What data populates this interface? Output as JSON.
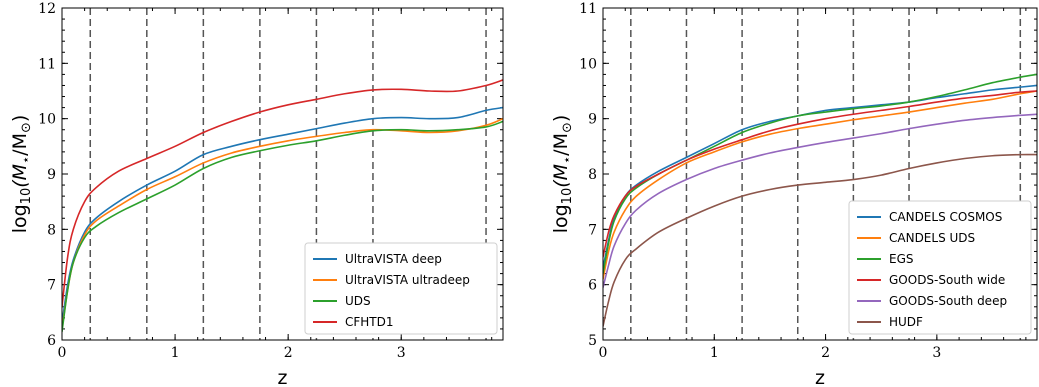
{
  "chart_data": [
    {
      "type": "line",
      "xlabel": "z",
      "ylabel_prefix": "log",
      "ylabel_sub": "10",
      "ylabel_main": "(M",
      "ylabel_star": "⋆",
      "ylabel_tail": "/M",
      "ylabel_sun": "⊙",
      "ylabel_end": ")",
      "xlim": [
        0,
        3.9
      ],
      "ylim": [
        6,
        12
      ],
      "xticks": [
        0,
        1,
        2,
        3
      ],
      "yticks": [
        6,
        7,
        8,
        9,
        10,
        11,
        12
      ],
      "vlines": [
        0.25,
        0.75,
        1.25,
        1.75,
        2.25,
        2.75,
        3.75
      ],
      "legend_position": "lower-right",
      "series": [
        {
          "name": "UltraVISTA deep",
          "color": "#1f77b4",
          "x": [
            0,
            0.05,
            0.1,
            0.2,
            0.3,
            0.5,
            0.75,
            1.0,
            1.25,
            1.5,
            1.75,
            2.0,
            2.25,
            2.5,
            2.75,
            3.0,
            3.25,
            3.5,
            3.75,
            3.9
          ],
          "y": [
            6.3,
            7.0,
            7.45,
            7.95,
            8.2,
            8.5,
            8.8,
            9.05,
            9.35,
            9.5,
            9.62,
            9.72,
            9.82,
            9.92,
            10.0,
            10.02,
            10.0,
            10.02,
            10.15,
            10.2
          ]
        },
        {
          "name": "UltraVISTA ultradeep",
          "color": "#ff7f0e",
          "x": [
            0,
            0.05,
            0.1,
            0.2,
            0.3,
            0.5,
            0.75,
            1.0,
            1.25,
            1.5,
            1.75,
            2.0,
            2.25,
            2.5,
            2.75,
            3.0,
            3.25,
            3.5,
            3.75,
            3.9
          ],
          "y": [
            6.2,
            6.9,
            7.4,
            7.9,
            8.15,
            8.42,
            8.72,
            8.95,
            9.2,
            9.38,
            9.5,
            9.6,
            9.68,
            9.75,
            9.8,
            9.78,
            9.75,
            9.78,
            9.88,
            10.0
          ]
        },
        {
          "name": "UDS",
          "color": "#2ca02c",
          "x": [
            0,
            0.05,
            0.1,
            0.2,
            0.3,
            0.5,
            0.75,
            1.0,
            1.25,
            1.5,
            1.75,
            2.0,
            2.25,
            2.5,
            2.75,
            3.0,
            3.25,
            3.5,
            3.75,
            3.9
          ],
          "y": [
            6.15,
            6.9,
            7.4,
            7.85,
            8.05,
            8.3,
            8.55,
            8.8,
            9.1,
            9.3,
            9.42,
            9.52,
            9.6,
            9.7,
            9.78,
            9.8,
            9.78,
            9.8,
            9.85,
            9.95
          ]
        },
        {
          "name": "CFHTD1",
          "color": "#d62728",
          "x": [
            0,
            0.05,
            0.1,
            0.2,
            0.3,
            0.5,
            0.75,
            1.0,
            1.25,
            1.5,
            1.75,
            2.0,
            2.25,
            2.5,
            2.75,
            3.0,
            3.25,
            3.5,
            3.75,
            3.9
          ],
          "y": [
            6.6,
            7.5,
            8.0,
            8.5,
            8.75,
            9.05,
            9.28,
            9.5,
            9.75,
            9.95,
            10.12,
            10.25,
            10.35,
            10.45,
            10.52,
            10.53,
            10.5,
            10.5,
            10.6,
            10.7
          ]
        }
      ]
    },
    {
      "type": "line",
      "xlabel": "z",
      "ylabel_prefix": "log",
      "ylabel_sub": "10",
      "ylabel_main": "(M",
      "ylabel_star": "⋆",
      "ylabel_tail": "/M",
      "ylabel_sun": "⊙",
      "ylabel_end": ")",
      "xlim": [
        0,
        3.9
      ],
      "ylim": [
        5,
        11
      ],
      "xticks": [
        0,
        1,
        2,
        3
      ],
      "yticks": [
        5,
        6,
        7,
        8,
        9,
        10,
        11
      ],
      "vlines": [
        0.25,
        0.75,
        1.25,
        1.75,
        2.25,
        2.75,
        3.75
      ],
      "legend_position": "lower-right",
      "series": [
        {
          "name": "CANDELS COSMOS",
          "color": "#1f77b4",
          "x": [
            0,
            0.05,
            0.1,
            0.2,
            0.3,
            0.5,
            0.75,
            1.0,
            1.25,
            1.5,
            1.75,
            2.0,
            2.25,
            2.5,
            2.75,
            3.0,
            3.25,
            3.5,
            3.75,
            3.9
          ],
          "y": [
            6.3,
            6.8,
            7.2,
            7.6,
            7.8,
            8.05,
            8.3,
            8.55,
            8.8,
            8.95,
            9.05,
            9.15,
            9.2,
            9.25,
            9.3,
            9.38,
            9.45,
            9.52,
            9.57,
            9.6
          ]
        },
        {
          "name": "CANDELS UDS",
          "color": "#ff7f0e",
          "x": [
            0,
            0.05,
            0.1,
            0.2,
            0.3,
            0.5,
            0.75,
            1.0,
            1.25,
            1.5,
            1.75,
            2.0,
            2.25,
            2.5,
            2.75,
            3.0,
            3.25,
            3.5,
            3.75,
            3.9
          ],
          "y": [
            6.1,
            6.6,
            6.95,
            7.35,
            7.6,
            7.9,
            8.2,
            8.4,
            8.58,
            8.72,
            8.82,
            8.9,
            8.98,
            9.05,
            9.12,
            9.2,
            9.28,
            9.35,
            9.45,
            9.5
          ]
        },
        {
          "name": "EGS",
          "color": "#2ca02c",
          "x": [
            0,
            0.05,
            0.1,
            0.2,
            0.3,
            0.5,
            0.75,
            1.0,
            1.25,
            1.5,
            1.75,
            2.0,
            2.25,
            2.5,
            2.75,
            3.0,
            3.25,
            3.5,
            3.75,
            3.9
          ],
          "y": [
            6.2,
            6.75,
            7.15,
            7.55,
            7.75,
            8.0,
            8.25,
            8.5,
            8.75,
            8.92,
            9.05,
            9.12,
            9.18,
            9.23,
            9.3,
            9.4,
            9.52,
            9.65,
            9.75,
            9.8
          ]
        },
        {
          "name": "GOODS-South wide",
          "color": "#d62728",
          "x": [
            0,
            0.05,
            0.1,
            0.2,
            0.3,
            0.5,
            0.75,
            1.0,
            1.25,
            1.5,
            1.75,
            2.0,
            2.25,
            2.5,
            2.75,
            3.0,
            3.25,
            3.5,
            3.75,
            3.9
          ],
          "y": [
            6.5,
            6.95,
            7.25,
            7.6,
            7.78,
            8.0,
            8.25,
            8.45,
            8.62,
            8.78,
            8.9,
            9.0,
            9.08,
            9.15,
            9.22,
            9.3,
            9.37,
            9.42,
            9.48,
            9.5
          ]
        },
        {
          "name": "GOODS-South deep",
          "color": "#9467bd",
          "x": [
            0,
            0.05,
            0.1,
            0.2,
            0.3,
            0.5,
            0.75,
            1.0,
            1.25,
            1.5,
            1.75,
            2.0,
            2.25,
            2.5,
            2.75,
            3.0,
            3.25,
            3.5,
            3.75,
            3.9
          ],
          "y": [
            5.95,
            6.35,
            6.7,
            7.1,
            7.35,
            7.65,
            7.9,
            8.1,
            8.25,
            8.38,
            8.48,
            8.57,
            8.65,
            8.73,
            8.82,
            8.9,
            8.97,
            9.02,
            9.06,
            9.08
          ]
        },
        {
          "name": "HUDF",
          "color": "#8c564b",
          "x": [
            0,
            0.05,
            0.1,
            0.2,
            0.3,
            0.5,
            0.75,
            1.0,
            1.25,
            1.5,
            1.75,
            2.0,
            2.25,
            2.5,
            2.75,
            3.0,
            3.25,
            3.5,
            3.75,
            3.9
          ],
          "y": [
            5.25,
            5.7,
            6.05,
            6.45,
            6.65,
            6.95,
            7.2,
            7.42,
            7.6,
            7.72,
            7.8,
            7.85,
            7.9,
            7.98,
            8.1,
            8.2,
            8.28,
            8.33,
            8.35,
            8.35
          ]
        }
      ]
    }
  ]
}
